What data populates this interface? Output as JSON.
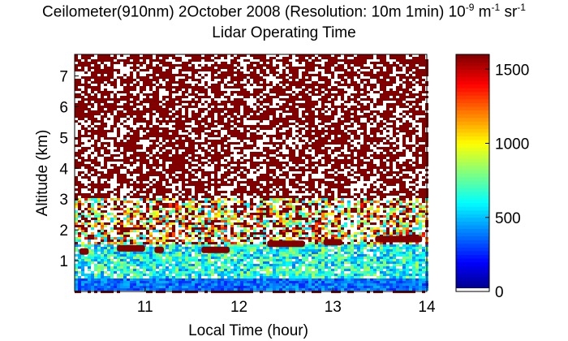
{
  "chart_data": {
    "type": "heatmap",
    "title_main": "Ceilometer(910nm) 2October 2008 (Resolution: 10m 1min) 10",
    "title_exp1": "-9",
    "title_unit1": " m",
    "title_exp2": "-1",
    "title_unit2": " sr",
    "title_exp3": "-1",
    "subtitle": "Lidar Operating Time",
    "xlabel": "Local Time (hour)",
    "ylabel": "Altitude (km)",
    "xlim": [
      10.25,
      14.0
    ],
    "ylim": [
      0,
      7.7
    ],
    "xticks": [
      11,
      12,
      13,
      14
    ],
    "xtick_labels": [
      "11",
      "12",
      "13",
      "14"
    ],
    "yticks": [
      1,
      2,
      3,
      4,
      5,
      6,
      7
    ],
    "ytick_labels": [
      "1",
      "2",
      "3",
      "4",
      "5",
      "6",
      "7"
    ],
    "colorbar": {
      "range": [
        0,
        1600
      ],
      "ticks": [
        0,
        500,
        1000,
        1500
      ],
      "tick_labels": [
        "0",
        "500",
        "1000",
        "1500"
      ],
      "colormap": "jet"
    },
    "description_layers": [
      {
        "altitude_range_km": [
          0,
          0.4
        ],
        "typical_value": 350,
        "note": "dense blue band near surface"
      },
      {
        "altitude_range_km": [
          0.4,
          1.5
        ],
        "typical_value": 600,
        "note": "cyan/blue aerosol layer"
      },
      {
        "altitude_range_km": [
          1.5,
          3.0
        ],
        "typical_value": 1000,
        "note": "mixed noisy transition"
      },
      {
        "altitude_range_km": [
          3.0,
          7.7
        ],
        "typical_value": 1600,
        "note": "saturated noise, dark red and white"
      }
    ],
    "cloud_segments": [
      {
        "time_start": 10.3,
        "time_end": 10.4,
        "altitude_km": 1.3
      },
      {
        "time_start": 10.7,
        "time_end": 11.0,
        "altitude_km": 1.4
      },
      {
        "time_start": 11.1,
        "time_end": 11.2,
        "altitude_km": 1.35
      },
      {
        "time_start": 11.6,
        "time_end": 11.9,
        "altitude_km": 1.35
      },
      {
        "time_start": 12.3,
        "time_end": 12.7,
        "altitude_km": 1.55
      },
      {
        "time_start": 12.9,
        "time_end": 13.1,
        "altitude_km": 1.6
      },
      {
        "time_start": 13.45,
        "time_end": 13.95,
        "altitude_km": 1.7
      }
    ]
  }
}
